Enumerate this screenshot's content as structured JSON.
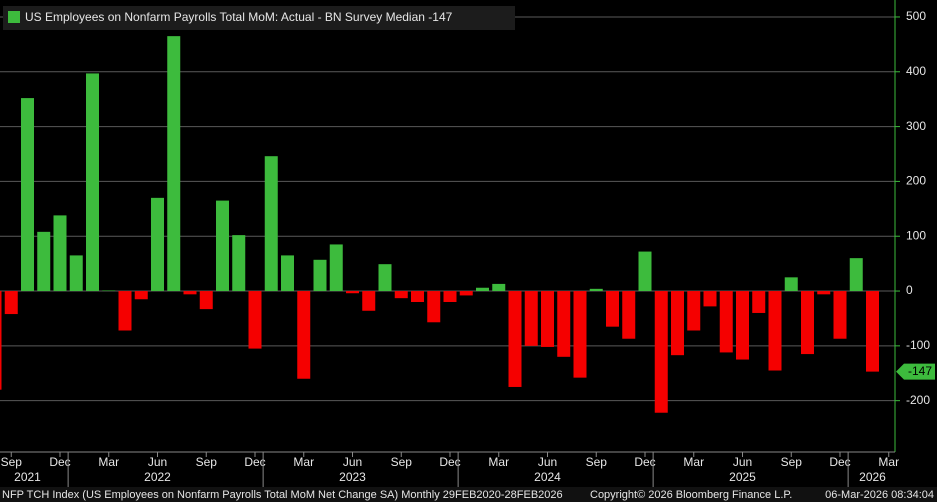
{
  "chart_data": {
    "type": "bar",
    "title": "US Employees on Nonfarm Payrolls Total MoM: Actual - BN Survey Median -147",
    "footer_left": "NFP TCH Index (US Employees on Nonfarm Payrolls Total MoM Net Change SA) Monthly 29FEB2020-28FEB2026",
    "footer_center": "Copyright© 2026 Bloomberg Finance L.P.",
    "footer_right": "06-Mar-2026 08:34:04",
    "categories": [
      null,
      "Sep",
      null,
      null,
      "Dec",
      null,
      null,
      "Mar",
      null,
      null,
      "Jun",
      null,
      null,
      "Sep",
      null,
      null,
      "Dec",
      null,
      null,
      "Mar",
      null,
      null,
      "Jun",
      null,
      null,
      "Sep",
      null,
      null,
      "Dec",
      null,
      null,
      "Mar",
      null,
      null,
      "Jun",
      null,
      null,
      "Sep",
      null,
      null,
      "Dec",
      null,
      null,
      "Mar",
      null,
      null,
      "Jun",
      null,
      null,
      "Sep",
      null,
      null,
      "Dec",
      null,
      null,
      "Mar"
    ],
    "years": [
      null,
      null,
      "2021",
      null,
      null,
      null,
      null,
      null,
      null,
      null,
      "2022",
      null,
      null,
      null,
      null,
      null,
      null,
      null,
      null,
      null,
      null,
      null,
      "2023",
      null,
      null,
      null,
      null,
      null,
      null,
      null,
      null,
      null,
      null,
      null,
      "2024",
      null,
      null,
      null,
      null,
      null,
      null,
      null,
      null,
      null,
      null,
      null,
      "2025",
      null,
      null,
      null,
      null,
      null,
      null,
      null,
      "2026",
      null
    ],
    "values": [
      -180,
      -42,
      352,
      108,
      138,
      65,
      397,
      1,
      -72,
      -15,
      170,
      465,
      -6,
      -33,
      165,
      102,
      -105,
      246,
      65,
      -160,
      57,
      85,
      -4,
      -36,
      49,
      -13,
      -20,
      -57,
      -20,
      -8,
      6,
      13,
      -175,
      -100,
      -102,
      -120,
      -158,
      4,
      -65,
      -87,
      72,
      -222,
      -117,
      -72,
      -28,
      -112,
      -125,
      -40,
      -145,
      25,
      -115,
      -6,
      -87,
      60,
      -147,
      null
    ],
    "positive_color": "#3dbb3d",
    "negative_color": "#f50000",
    "ylim": [
      -290,
      520
    ],
    "yticks": [
      500,
      400,
      300,
      200,
      100,
      0,
      -100,
      -200
    ],
    "grid": true
  }
}
